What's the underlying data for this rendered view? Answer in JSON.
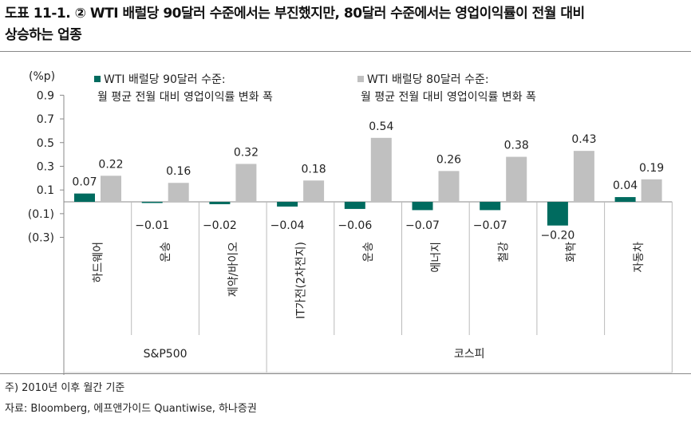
{
  "title": {
    "line1": "도표 11-1. ② WTI 배럴당 90달러 수준에서는 부진했지만, 80달러 수준에서는 영업이익률이 전월 대비",
    "line2": "상승하는 업종"
  },
  "chart_data": {
    "type": "bar",
    "ylabel": "(%p)",
    "ylim": [
      -0.3,
      0.9
    ],
    "yticks": [
      0.9,
      0.7,
      0.5,
      0.3,
      0.1,
      -0.1,
      -0.3
    ],
    "ytick_labels": [
      "0.9",
      "0.7",
      "0.5",
      "0.3",
      "0.1",
      "(0.1)",
      "(0.3)"
    ],
    "categories": [
      "하드웨어",
      "운송",
      "제약/바이오",
      "IT가전(2차전지)",
      "운송",
      "에너지",
      "철강",
      "화학",
      "자동차"
    ],
    "groups": [
      {
        "label": "S&P500",
        "count": 3
      },
      {
        "label": "코스피",
        "count": 6
      }
    ],
    "series": [
      {
        "name_line1": "WTI 배럴당 90달러 수준:",
        "name_line2": "월 평균 전월 대비 영업이익률 변화 폭",
        "color": "#006B5F",
        "values": [
          0.07,
          -0.01,
          -0.02,
          -0.04,
          -0.06,
          -0.07,
          -0.07,
          -0.2,
          0.04
        ]
      },
      {
        "name_line1": "WTI 배럴당 80달러 수준:",
        "name_line2": "월 평균 전월 대비 영업이익률 변화 폭",
        "color": "#C0C0C0",
        "values": [
          0.22,
          0.16,
          0.32,
          0.18,
          0.54,
          0.26,
          0.38,
          0.43,
          0.19
        ]
      }
    ],
    "value_labels": [
      [
        "0.07",
        "−0.01",
        "−0.02",
        "−0.04",
        "−0.06",
        "−0.07",
        "−0.07",
        "−0.20",
        "0.04"
      ],
      [
        "0.22",
        "0.16",
        "0.32",
        "0.18",
        "0.54",
        "0.26",
        "0.38",
        "0.43",
        "0.19"
      ]
    ],
    "grid": false,
    "legend": "top"
  },
  "footer": {
    "note": "주) 2010년 이후 월간 기준",
    "source": "자료: Bloomberg, 에프앤가이드 Quantiwise, 하나증권"
  }
}
